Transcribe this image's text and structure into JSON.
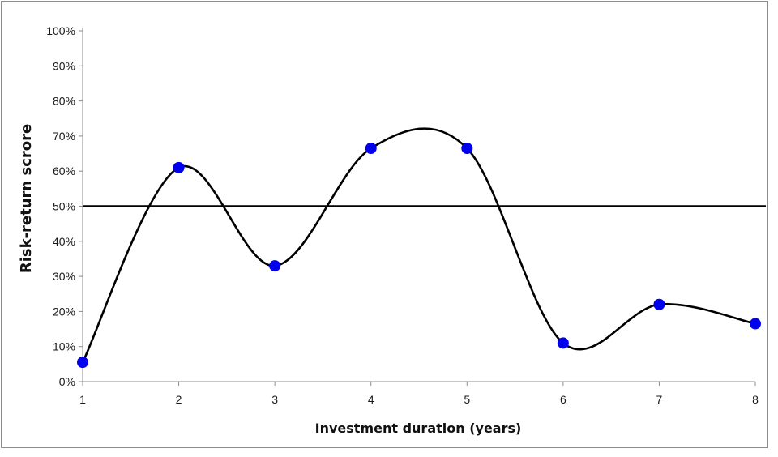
{
  "chart_data": {
    "type": "line",
    "xlabel": "Investment duration (years)",
    "ylabel": "Risk-return scrore",
    "x": [
      1,
      2,
      3,
      4,
      5,
      6,
      7,
      8
    ],
    "series": [
      {
        "values": [
          0.055,
          0.61,
          0.33,
          0.665,
          0.665,
          0.11,
          0.22,
          0.165
        ]
      }
    ],
    "reference_line": 0.5,
    "xlim": [
      1,
      8
    ],
    "ylim": [
      0,
      1
    ],
    "xticks": [
      "1",
      "2",
      "3",
      "4",
      "5",
      "6",
      "7",
      "8"
    ],
    "yticks": [
      "0%",
      "10%",
      "20%",
      "30%",
      "40%",
      "50%",
      "60%",
      "70%",
      "80%",
      "90%",
      "100%"
    ],
    "grid": false,
    "legend": "none",
    "smooth": true,
    "colors": {
      "line": "#000000",
      "marker": "#0000ee",
      "reference": "#000000"
    }
  }
}
